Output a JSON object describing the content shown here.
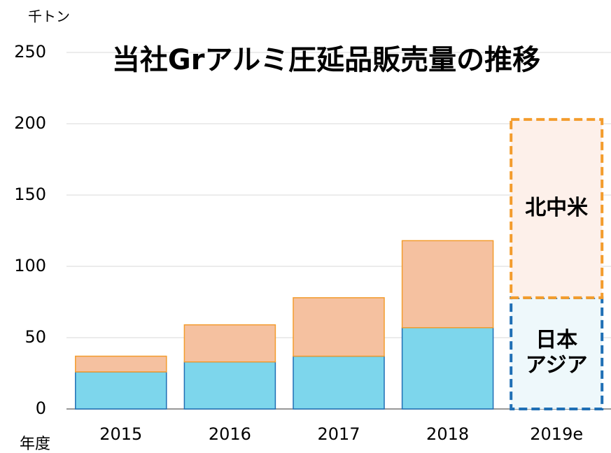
{
  "chart_data": {
    "type": "stacked_bar",
    "title": "当社Grアルミ圧延品販売量の推移",
    "y_unit": "千トン",
    "x_label": "年度",
    "categories": [
      "2015",
      "2016",
      "2017",
      "2018",
      "2019e"
    ],
    "dashed": [
      false,
      false,
      false,
      false,
      true
    ],
    "series": [
      {
        "name": [
          "日本",
          "アジア"
        ],
        "color": "#7dd6ec",
        "edge": "#1f6fb5",
        "light": "#eef8fb",
        "values": [
          26,
          33,
          37,
          57,
          78
        ]
      },
      {
        "name": [
          "北中米"
        ],
        "color": "#f5c1a0",
        "edge": "#f39c2d",
        "light": "#fdf0ea",
        "values": [
          11,
          26,
          41,
          61,
          125
        ]
      }
    ],
    "ylim": [
      0,
      250
    ],
    "yticks": [
      0,
      50,
      100,
      150,
      200,
      250
    ],
    "grid": true
  }
}
